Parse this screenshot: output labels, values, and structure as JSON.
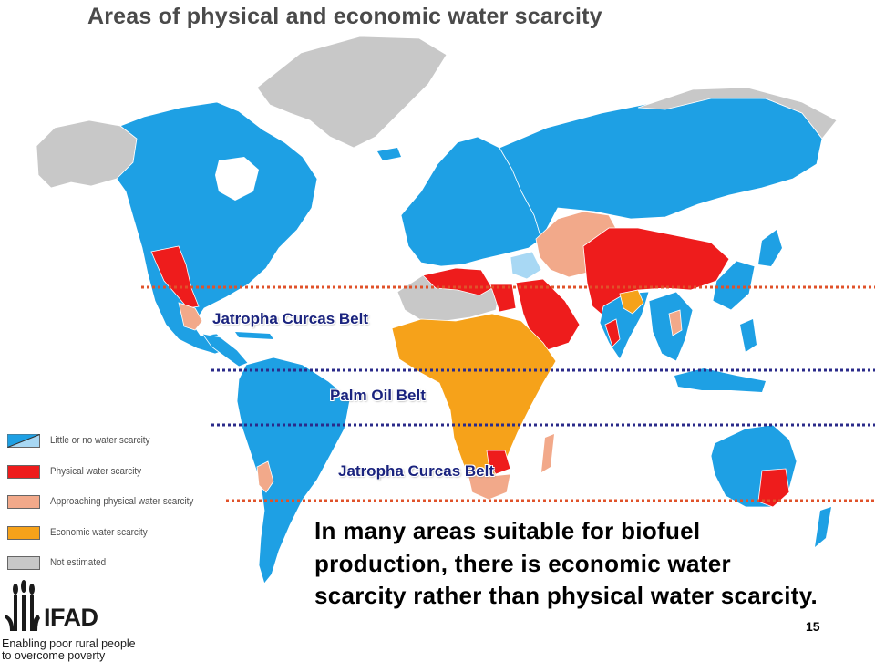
{
  "title": "Areas of physical and economic water scarcity",
  "colors": {
    "little_or_no": "#1ea0e4",
    "little_or_no_light": "#a8d8f4",
    "physical": "#ee1c1c",
    "approaching": "#f2a98a",
    "economic": "#f6a21a",
    "not_estimated": "#c8c8c8",
    "jatropha_line": "#e0522a",
    "palm_line": "#2b2b8a",
    "label_color": "#1a237e"
  },
  "legend": [
    {
      "key": "little_or_no",
      "label": "Little or no water scarcity"
    },
    {
      "key": "physical",
      "label": "Physical water scarcity"
    },
    {
      "key": "approaching",
      "label": "Approaching physical water scarcity"
    },
    {
      "key": "economic",
      "label": "Economic water scarcity"
    },
    {
      "key": "not_estimated",
      "label": "Not estimated"
    }
  ],
  "belts": {
    "north_jatropha": "Jatropha Curcas Belt",
    "palm": "Palm Oil Belt",
    "south_jatropha": "Jatropha Curcas Belt"
  },
  "caption": "In many areas suitable for biofuel production, there is economic water scarcity rather than physical water scarcity.",
  "page_number": "15",
  "logo": {
    "name": "IFAD",
    "tagline_line1": "Enabling poor rural people",
    "tagline_line2": "to overcome poverty"
  }
}
